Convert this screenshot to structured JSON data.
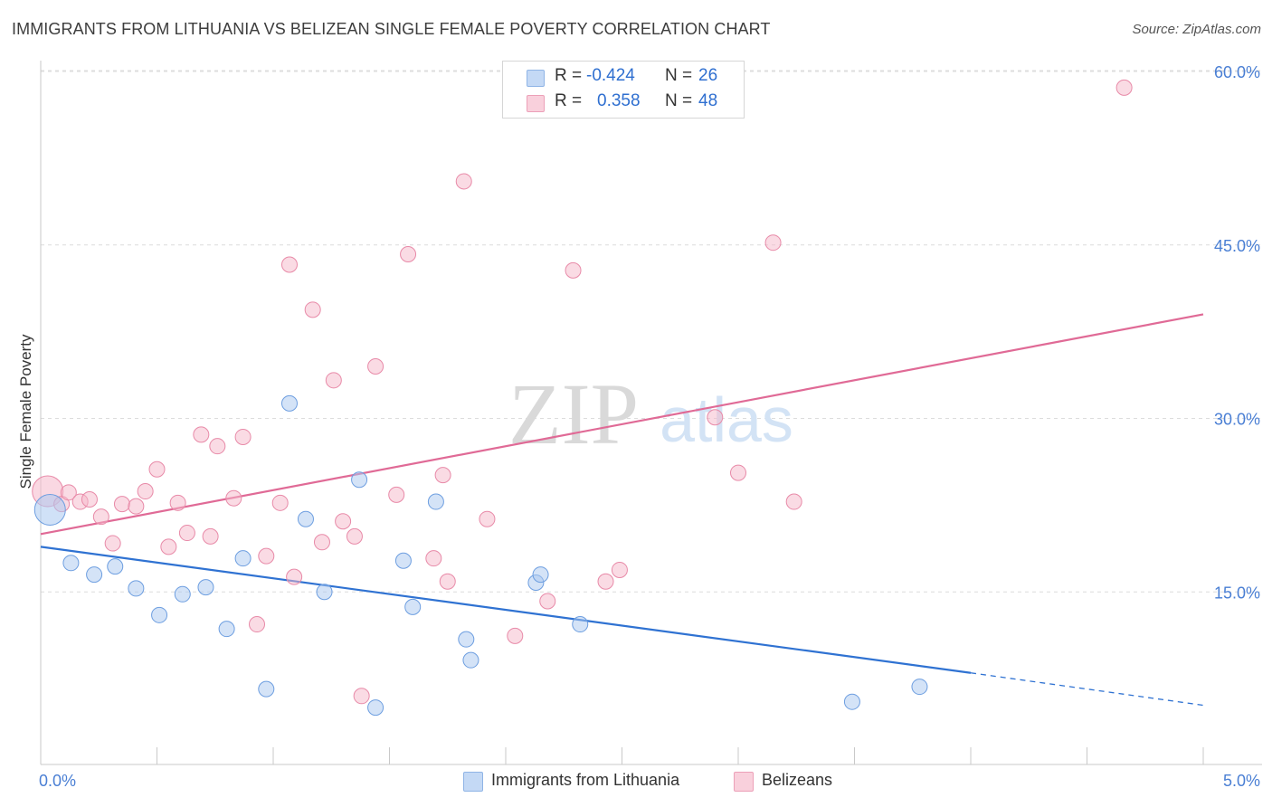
{
  "title": "IMMIGRANTS FROM LITHUANIA VS BELIZEAN SINGLE FEMALE POVERTY CORRELATION CHART",
  "source": "Source: ZipAtlas.com",
  "watermark": {
    "zip": "ZIP",
    "atlas": "atlas"
  },
  "stats": [
    {
      "r_label": "R =",
      "r_value": "-0.424",
      "n_label": "N =",
      "n_value": "26",
      "color": "#a9c8f0"
    },
    {
      "r_label": "R =",
      "r_value": "0.358",
      "n_label": "N =",
      "n_value": "48",
      "color": "#f6b8ca"
    }
  ],
  "legend": [
    {
      "label": "Immigrants from Lithuania",
      "color": "#a9c8f0"
    },
    {
      "label": "Belizeans",
      "color": "#f6b8ca"
    }
  ],
  "chart_data": {
    "type": "scatter",
    "title": "IMMIGRANTS FROM LITHUANIA VS BELIZEAN SINGLE FEMALE POVERTY CORRELATION CHART",
    "xlabel": "",
    "ylabel": "Single Female Poverty",
    "xlim": [
      0,
      5
    ],
    "ylim": [
      0,
      60
    ],
    "x_tick_labels": [
      "0.0%",
      "5.0%"
    ],
    "y_ticks": [
      15,
      30,
      45,
      60
    ],
    "y_tick_labels": [
      "15.0%",
      "30.0%",
      "45.0%",
      "60.0%"
    ],
    "grid": true,
    "legend_position": "bottom",
    "series": [
      {
        "name": "Immigrants from Lithuania",
        "color": "#a9c8f0",
        "stroke": "#6d9ee0",
        "line_color": "#2f72d2",
        "trend": {
          "x0": 0,
          "y0": 18.9,
          "x1": 4.0,
          "y1": 8.0,
          "dash_x1": 5.0,
          "dash_y1": 5.2
        },
        "points": [
          {
            "x": 0.04,
            "y": 22.1,
            "big": true
          },
          {
            "x": 0.13,
            "y": 17.5
          },
          {
            "x": 0.23,
            "y": 16.5
          },
          {
            "x": 0.32,
            "y": 17.2
          },
          {
            "x": 0.41,
            "y": 15.3
          },
          {
            "x": 0.51,
            "y": 13.0
          },
          {
            "x": 0.61,
            "y": 14.8
          },
          {
            "x": 0.71,
            "y": 15.4
          },
          {
            "x": 0.8,
            "y": 11.8
          },
          {
            "x": 0.87,
            "y": 17.9
          },
          {
            "x": 0.97,
            "y": 6.6
          },
          {
            "x": 1.07,
            "y": 31.3
          },
          {
            "x": 1.14,
            "y": 21.3
          },
          {
            "x": 1.22,
            "y": 15.0
          },
          {
            "x": 1.37,
            "y": 24.7
          },
          {
            "x": 1.44,
            "y": 5.0
          },
          {
            "x": 1.56,
            "y": 17.7
          },
          {
            "x": 1.6,
            "y": 13.7
          },
          {
            "x": 1.7,
            "y": 22.8
          },
          {
            "x": 1.83,
            "y": 10.9
          },
          {
            "x": 1.85,
            "y": 9.1
          },
          {
            "x": 2.13,
            "y": 15.8
          },
          {
            "x": 2.15,
            "y": 16.5
          },
          {
            "x": 2.32,
            "y": 12.2
          },
          {
            "x": 3.49,
            "y": 5.5
          },
          {
            "x": 3.78,
            "y": 6.8
          }
        ]
      },
      {
        "name": "Belizeans",
        "color": "#f6b8ca",
        "stroke": "#e88aa8",
        "line_color": "#e06a96",
        "trend": {
          "x0": 0,
          "y0": 20.0,
          "x1": 5.0,
          "y1": 39.0
        },
        "points": [
          {
            "x": 0.03,
            "y": 23.7,
            "big": true
          },
          {
            "x": 0.09,
            "y": 22.6
          },
          {
            "x": 0.12,
            "y": 23.6
          },
          {
            "x": 0.17,
            "y": 22.8
          },
          {
            "x": 0.21,
            "y": 23.0
          },
          {
            "x": 0.26,
            "y": 21.5
          },
          {
            "x": 0.31,
            "y": 19.2
          },
          {
            "x": 0.35,
            "y": 22.6
          },
          {
            "x": 0.41,
            "y": 22.4
          },
          {
            "x": 0.45,
            "y": 23.7
          },
          {
            "x": 0.5,
            "y": 25.6
          },
          {
            "x": 0.55,
            "y": 18.9
          },
          {
            "x": 0.59,
            "y": 22.7
          },
          {
            "x": 0.63,
            "y": 20.1
          },
          {
            "x": 0.69,
            "y": 28.6
          },
          {
            "x": 0.73,
            "y": 19.8
          },
          {
            "x": 0.76,
            "y": 27.6
          },
          {
            "x": 0.83,
            "y": 23.1
          },
          {
            "x": 0.87,
            "y": 28.4
          },
          {
            "x": 0.93,
            "y": 12.2
          },
          {
            "x": 0.97,
            "y": 18.1
          },
          {
            "x": 1.03,
            "y": 22.7
          },
          {
            "x": 1.07,
            "y": 43.3
          },
          {
            "x": 1.09,
            "y": 16.3
          },
          {
            "x": 1.17,
            "y": 39.4
          },
          {
            "x": 1.21,
            "y": 19.3
          },
          {
            "x": 1.26,
            "y": 33.3
          },
          {
            "x": 1.3,
            "y": 21.1
          },
          {
            "x": 1.35,
            "y": 19.8
          },
          {
            "x": 1.38,
            "y": 6.0
          },
          {
            "x": 1.44,
            "y": 34.5
          },
          {
            "x": 1.53,
            "y": 23.4
          },
          {
            "x": 1.58,
            "y": 44.2
          },
          {
            "x": 1.69,
            "y": 17.9
          },
          {
            "x": 1.73,
            "y": 25.1
          },
          {
            "x": 1.75,
            "y": 15.9
          },
          {
            "x": 1.82,
            "y": 50.5
          },
          {
            "x": 1.92,
            "y": 21.3
          },
          {
            "x": 2.04,
            "y": 11.2
          },
          {
            "x": 2.18,
            "y": 14.2
          },
          {
            "x": 2.29,
            "y": 42.8
          },
          {
            "x": 2.43,
            "y": 15.9
          },
          {
            "x": 2.49,
            "y": 16.9
          },
          {
            "x": 2.9,
            "y": 30.1
          },
          {
            "x": 3.0,
            "y": 25.3
          },
          {
            "x": 3.15,
            "y": 45.2
          },
          {
            "x": 3.24,
            "y": 22.8
          },
          {
            "x": 4.66,
            "y": 58.6
          }
        ]
      }
    ]
  }
}
